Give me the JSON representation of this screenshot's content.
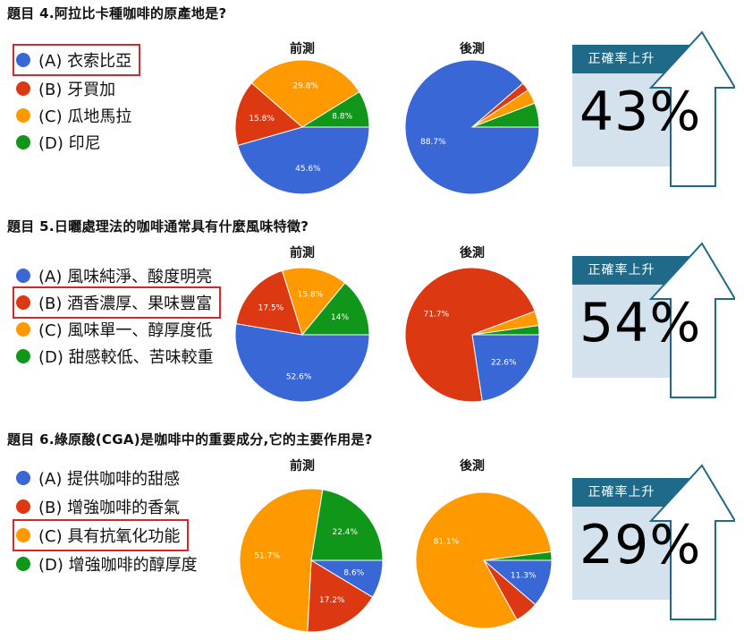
{
  "labels": {
    "pre": "前測",
    "post": "後測",
    "card_band": "正確率上升"
  },
  "colors": {
    "blue": "#3a67d6",
    "red": "#dc3912",
    "orange": "#ff9900",
    "green": "#109618",
    "teal": "#1f6a88",
    "panel": "#d3e2ec",
    "highlight": "#d9262b"
  },
  "questions": [
    {
      "title": "題目 4.阿拉比卡種咖啡的原產地是?",
      "options": [
        "(A) 衣索比亞",
        "(B) 牙買加",
        "(C) 瓜地馬拉",
        "(D) 印尼"
      ],
      "correct_option": "(A) 衣索比亞",
      "increase": "43%"
    },
    {
      "title": "題目 5.日曬處理法的咖啡通常具有什麼風味特徵?",
      "options": [
        "(A) 風味純淨、酸度明亮",
        "(B) 酒香濃厚、果味豐富",
        "(C) 風味單一、醇厚度低",
        "(D) 甜感較低、苦味較重"
      ],
      "correct_option": "(B) 酒香濃厚、果味豐富",
      "increase": "54%"
    },
    {
      "title": "題目 6.綠原酸(CGA)是咖啡中的重要成分,它的主要作用是?",
      "options": [
        "(A) 提供咖啡的甜感",
        "(B) 增強咖啡的香氣",
        "(C) 具有抗氧化功能",
        "(D) 增強咖啡的醇厚度"
      ],
      "correct_option": "(C) 具有抗氧化功能",
      "increase": "29%"
    }
  ],
  "chart_data": [
    {
      "type": "pie",
      "title": "前測",
      "question": "題目 4",
      "categories": [
        "(A)",
        "(B)",
        "(C)",
        "(D)"
      ],
      "values": [
        45.6,
        15.8,
        29.8,
        8.8
      ],
      "labels": [
        "45.6%",
        "15.8%",
        "29.8%",
        "8.8%"
      ]
    },
    {
      "type": "pie",
      "title": "後測",
      "question": "題目 4",
      "categories": [
        "(A)",
        "(B)",
        "(C)",
        "(D)"
      ],
      "values": [
        88.7,
        2.0,
        3.5,
        5.8
      ],
      "labels": [
        "88.7%",
        "",
        "",
        ""
      ]
    },
    {
      "type": "pie",
      "title": "前測",
      "question": "題目 5",
      "categories": [
        "(A)",
        "(B)",
        "(C)",
        "(D)"
      ],
      "values": [
        52.6,
        17.5,
        15.8,
        14.0
      ],
      "labels": [
        "52.6%",
        "17.5%",
        "15.8%",
        "14%"
      ]
    },
    {
      "type": "pie",
      "title": "後測",
      "question": "題目 5",
      "categories": [
        "(A)",
        "(B)",
        "(C)",
        "(D)"
      ],
      "values": [
        22.6,
        71.7,
        3.5,
        2.2
      ],
      "labels": [
        "22.6%",
        "71.7%",
        "",
        ""
      ]
    },
    {
      "type": "pie",
      "title": "前測",
      "question": "題目 6",
      "categories": [
        "(A)",
        "(B)",
        "(C)",
        "(D)"
      ],
      "values": [
        8.6,
        17.2,
        51.7,
        22.4
      ],
      "labels": [
        "8.6%",
        "17.2%",
        "51.7%",
        "22.4%"
      ]
    },
    {
      "type": "pie",
      "title": "後測",
      "question": "題目 6",
      "categories": [
        "(A)",
        "(B)",
        "(C)",
        "(D)"
      ],
      "values": [
        11.3,
        5.6,
        81.1,
        2.0
      ],
      "labels": [
        "11.3%",
        "",
        "81.1%",
        ""
      ]
    }
  ]
}
